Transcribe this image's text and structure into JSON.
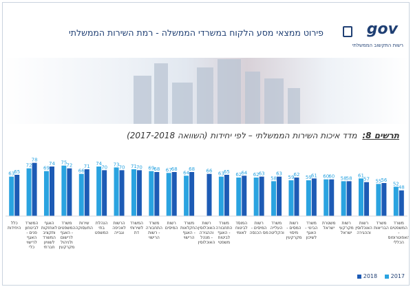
{
  "header": {
    "title": "פירוט ממצאי מסע הלקוח במשרדי הממשלה - רמת השירות הממשלתי",
    "logo_text": "gov",
    "logo_subtitle": "רשות התקשוב הממשלתי"
  },
  "colors": {
    "series_2017": "#2aa3e0",
    "series_2018": "#1d5bb5"
  },
  "chart_data": {
    "type": "bar",
    "title_lead": "תרשים 8:",
    "title": "מדד איכות השירות הממשלתי – לפי יחידות (השוואה 2017-2018)",
    "direction": "rtl",
    "ylim": [
      0,
      100
    ],
    "categories": [
      "כלל היחידות",
      "המשרד לביטחון פנים - האגף לרישוי כלי ירייה",
      "האגף לאחזקות ותקציב המשרד לשוויון חברתי",
      "משרד המשפטים - האגף לרישום ולניהול מקרקעין",
      "שירות התעסוקה",
      "הנהלת בתי המשפט",
      "הרשות לאכיפה וגבייה",
      "המשרד לשירותי דת",
      "משרד התחבורה - רשות הרישוי",
      "רשות המיסים",
      "משרד החקלאות - האגף הרישוי",
      "רשות האוכלוסין וההגירה - מנהל האוכלוסין",
      "משרד התחבורה - האגף לביטוח משפטי",
      "המוסד לביטוח לאומי",
      "רשות המיסים - מס הכנסה",
      "משרד העלייה והקליטה",
      "רשות המסים - מיסוי מקרקעין",
      "משרד הבינוי - האגף לשיכון",
      "משטרת ישראל",
      "רשות מקרקעי ישראל",
      "רשות האוכלוסין וההגירה",
      "משרד הבריאות",
      "משרד המשפטים - האפוטרופוס הכללי"
    ],
    "series": [
      {
        "name": "2017",
        "values": [
          63,
          72,
          69,
          75,
          66,
          74,
          73,
          71,
          69,
          67,
          64,
          null,
          63,
          62,
          62,
          58,
          59,
          59,
          60,
          58,
          61,
          55,
          52
        ]
      },
      {
        "name": "2018",
        "values": [
          65,
          78,
          74,
          72,
          71,
          70,
          70,
          70,
          68,
          68,
          68,
          66,
          65,
          64,
          63,
          63,
          62,
          61,
          60,
          58,
          57,
          56,
          48
        ]
      }
    ]
  },
  "legend": [
    {
      "label": "2017",
      "color": "#2aa3e0"
    },
    {
      "label": "2018",
      "color": "#1d5bb5"
    }
  ]
}
